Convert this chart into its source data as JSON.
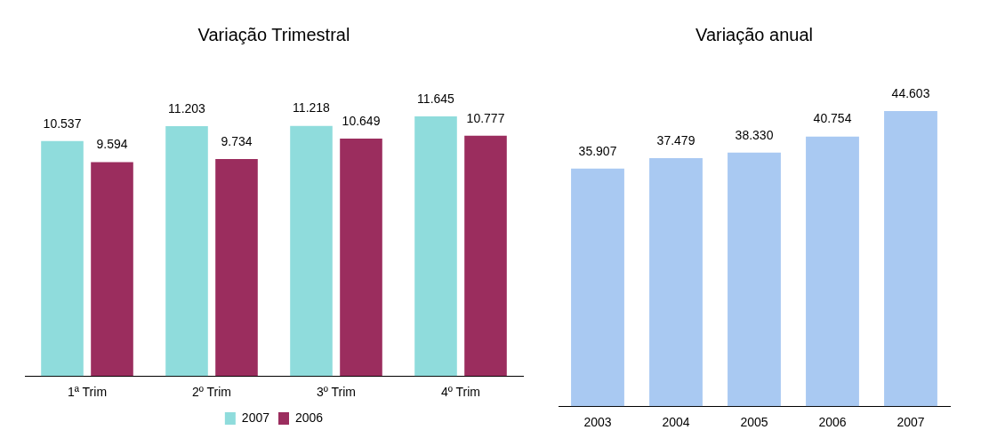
{
  "chart_data": [
    {
      "type": "bar",
      "title": "Variação Trimestral",
      "categories": [
        "1ª Trim",
        "2º Trim",
        "3º Trim",
        "4º Trim"
      ],
      "series": [
        {
          "name": "2007",
          "color": "#8fdcdc",
          "values": [
            10537,
            11203,
            11218,
            11645
          ],
          "value_labels": [
            "10.537",
            "11.203",
            "11.218",
            "11.645"
          ]
        },
        {
          "name": "2006",
          "color": "#9b2d5e",
          "values": [
            9594,
            9734,
            10649,
            10777
          ],
          "value_labels": [
            "9.594",
            "9.734",
            "10.649",
            "10.777"
          ]
        }
      ],
      "legend": "bottom",
      "grid": false
    },
    {
      "type": "bar",
      "title": "Variação anual",
      "categories": [
        "2003",
        "2004",
        "2005",
        "2006",
        "2007"
      ],
      "color": "#a9c9f2",
      "values": [
        35907,
        37479,
        38330,
        40754,
        44603
      ],
      "value_labels": [
        "35.907",
        "37.479",
        "38.330",
        "40.754",
        "44.603"
      ],
      "legend": false,
      "grid": false
    }
  ]
}
